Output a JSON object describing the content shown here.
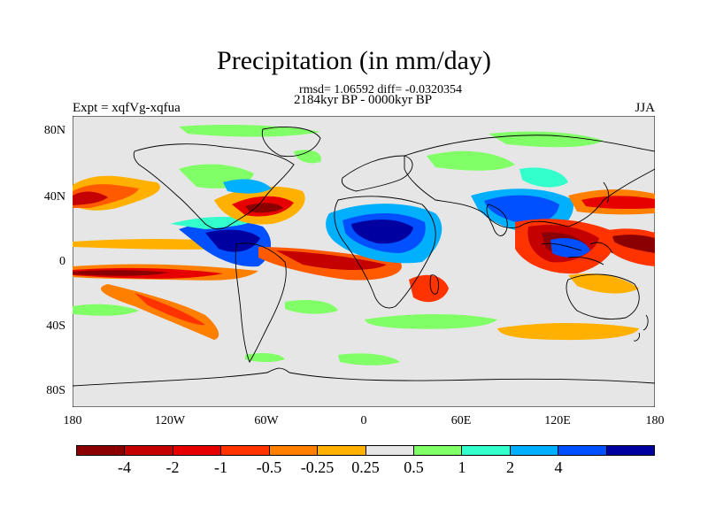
{
  "title": "Precipitation (in mm/day)",
  "subtitle_stats": "rmsd= 1.06592 diff= -0.0320354",
  "subtitle_period": "2184kyr BP - 0000kyr BP",
  "left_label": "Expt = xqfVg-xqfua",
  "right_label": "JJA",
  "y_ticks": [
    "80N",
    "40N",
    "0",
    "40S",
    "80S"
  ],
  "x_ticks": [
    "180",
    "120W",
    "60W",
    "0",
    "60E",
    "120E",
    "180"
  ],
  "colorbar": {
    "colors": [
      "#8b0000",
      "#c40000",
      "#e60000",
      "#ff3300",
      "#ff7f00",
      "#ffb000",
      "#e6e6e6",
      "#80ff66",
      "#33ffcc",
      "#00b0ff",
      "#0050ff",
      "#0000a0"
    ],
    "labels": [
      "-4",
      "-2",
      "-1",
      "-0.5",
      "-0.25",
      "0.25",
      "0.5",
      "1",
      "2",
      "4"
    ]
  },
  "map_background": "#e6e6e6"
}
